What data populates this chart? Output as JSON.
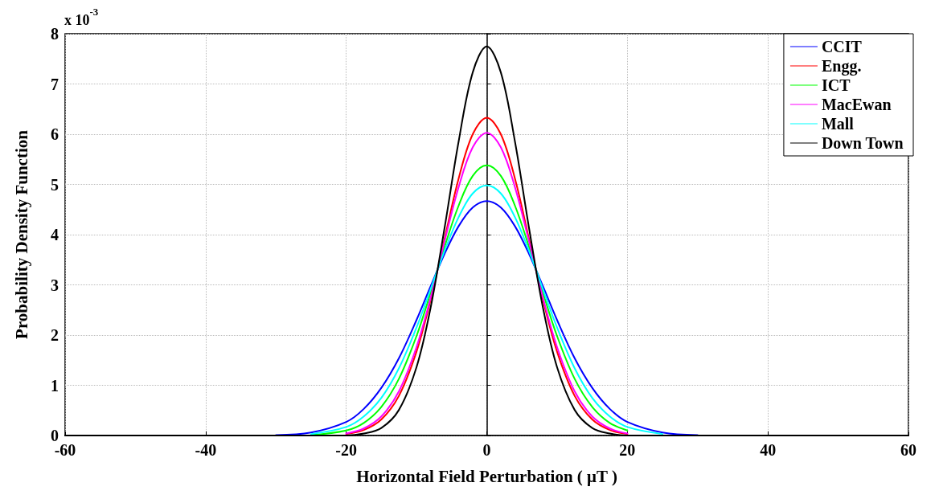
{
  "chart_data": {
    "type": "line",
    "xlabel": "Horizontal Field Perturbation ( μT )",
    "ylabel": "Probability Density Function",
    "annotations": [
      "x 10$^{-3}$"
    ],
    "x": [
      -60,
      -30,
      -25,
      -20,
      -17.5,
      -15,
      -12.5,
      -10,
      -8,
      -6,
      -4,
      -2,
      0,
      2,
      4,
      6,
      8,
      10,
      12.5,
      15,
      17.5,
      20,
      25,
      30,
      60
    ],
    "series": [
      {
        "name": "CCIT",
        "color": "#0000ff",
        "values": [
          null,
          0.01,
          0.06,
          0.27,
          0.53,
          0.95,
          1.54,
          2.3,
          2.97,
          3.62,
          4.17,
          4.54,
          4.67,
          4.54,
          4.17,
          3.62,
          2.97,
          2.3,
          1.54,
          0.95,
          0.53,
          0.27,
          0.06,
          0.01,
          null
        ]
      },
      {
        "name": "Engg.",
        "color": "#ff0000",
        "values": [
          null,
          null,
          null,
          0.03,
          0.11,
          0.32,
          0.79,
          1.67,
          2.7,
          3.92,
          5.12,
          6.0,
          6.33,
          6.0,
          5.12,
          3.92,
          2.7,
          1.67,
          0.79,
          0.32,
          0.11,
          0.03,
          null,
          null,
          null
        ]
      },
      {
        "name": "ICT",
        "color": "#00ff00",
        "values": [
          null,
          null,
          0.01,
          0.1,
          0.25,
          0.57,
          1.13,
          1.98,
          2.84,
          3.76,
          4.58,
          5.17,
          5.38,
          5.17,
          4.58,
          3.76,
          2.84,
          1.98,
          1.13,
          0.57,
          0.25,
          0.1,
          null,
          null,
          null
        ]
      },
      {
        "name": "MacEwan",
        "color": "#ff00ff",
        "values": [
          null,
          null,
          null,
          0.04,
          0.14,
          0.38,
          0.88,
          1.76,
          2.74,
          3.87,
          4.95,
          5.74,
          6.03,
          5.74,
          4.95,
          3.87,
          2.74,
          1.76,
          0.88,
          0.38,
          0.14,
          0.04,
          null,
          null,
          null
        ]
      },
      {
        "name": "Mall",
        "color": "#00ffff",
        "values": [
          null,
          null,
          0.03,
          0.17,
          0.38,
          0.75,
          1.34,
          2.15,
          2.91,
          3.68,
          4.35,
          4.82,
          4.98,
          4.82,
          4.35,
          3.68,
          2.91,
          2.15,
          1.34,
          0.75,
          0.38,
          0.17,
          0.03,
          null,
          null
        ]
      },
      {
        "name": "Down Town",
        "color": "#000000",
        "values": [
          0,
          0,
          0,
          0,
          0.04,
          0.15,
          0.51,
          1.36,
          2.54,
          4.14,
          5.86,
          7.23,
          7.75,
          7.23,
          5.86,
          4.14,
          2.54,
          1.36,
          0.51,
          0.15,
          0.04,
          0,
          0,
          0,
          0
        ]
      }
    ],
    "xlim": [
      -60,
      60
    ],
    "xticks": [
      -60,
      -40,
      -20,
      0,
      20,
      40,
      60
    ],
    "ylim": [
      0,
      8
    ],
    "yticks": [
      0,
      1,
      2,
      3,
      4,
      5,
      6,
      7,
      8
    ],
    "grid": true,
    "legend": "top right",
    "marker": "none",
    "line_style": "solid"
  }
}
